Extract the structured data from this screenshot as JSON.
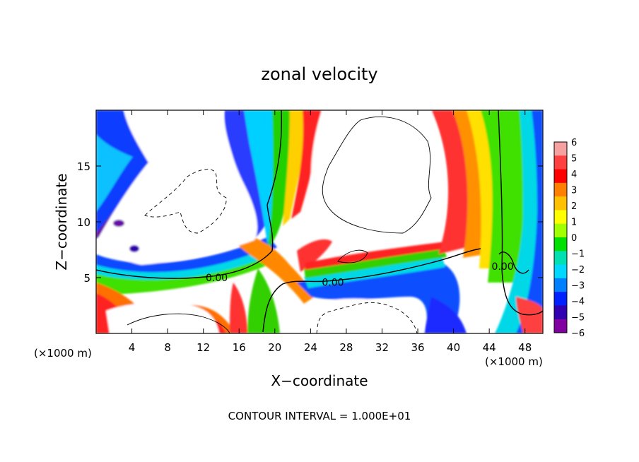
{
  "chart_data": {
    "type": "heatmap",
    "title": "zonal velocity",
    "xlabel": "X−coordinate",
    "ylabel": "Z−coordinate",
    "x_unit_left": "(×1000 m)",
    "x_unit_right": "(×1000 m)",
    "xlim": [
      0,
      50
    ],
    "ylim": [
      0,
      20
    ],
    "x_ticks": [
      4,
      8,
      12,
      16,
      20,
      24,
      28,
      32,
      36,
      40,
      44,
      48
    ],
    "y_ticks": [
      5,
      10,
      15
    ],
    "colorbar": {
      "ticks": [
        "6",
        "5",
        "4",
        "3",
        "2",
        "1",
        "0",
        "−1",
        "−2",
        "−3",
        "−4",
        "−5",
        "−6"
      ],
      "colors": [
        "#f7a0a0",
        "#ff4040",
        "#ff0000",
        "#ff8000",
        "#ffc000",
        "#ffff00",
        "#a0ff00",
        "#00e000",
        "#00e0b0",
        "#00d8ff",
        "#0080ff",
        "#0020ff",
        "#3000b0",
        "#8000a0"
      ]
    },
    "contour_labels": [
      {
        "text": "0.00",
        "x": 13.5,
        "z": 5.0
      },
      {
        "text": "0.00",
        "x": 26.5,
        "z": 4.6
      },
      {
        "text": "0.00",
        "x": 45.5,
        "z": 6.0
      }
    ],
    "footer": "CONTOUR INTERVAL = 1.000E+01"
  }
}
